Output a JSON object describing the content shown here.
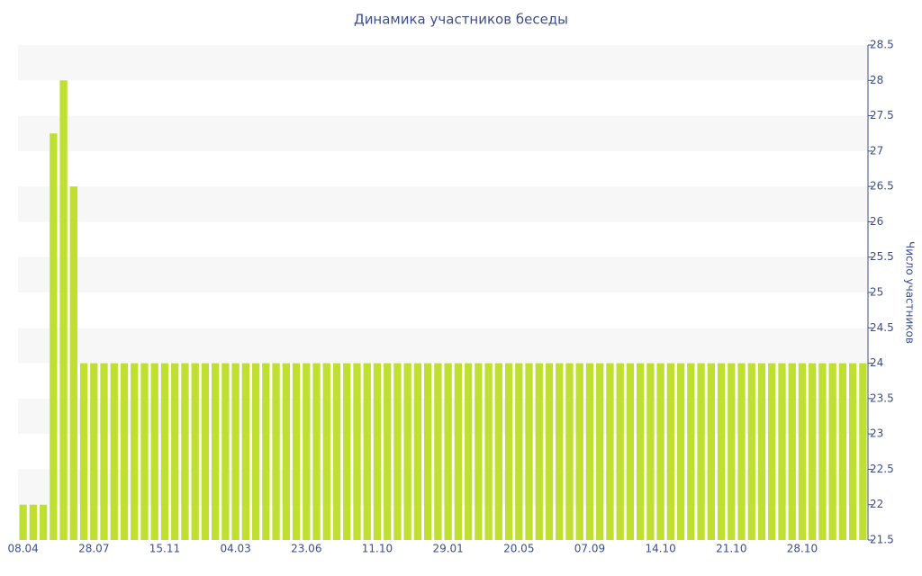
{
  "chart_data": {
    "type": "bar",
    "title": "Динамика участников беседы",
    "y_label": "Число участников",
    "categories": [
      "08.04",
      null,
      null,
      null,
      null,
      null,
      null,
      "28.07",
      null,
      null,
      null,
      null,
      null,
      null,
      "15.11",
      null,
      null,
      null,
      null,
      null,
      null,
      "04.03",
      null,
      null,
      null,
      null,
      null,
      null,
      "23.06",
      null,
      null,
      null,
      null,
      null,
      null,
      "11.10",
      null,
      null,
      null,
      null,
      null,
      null,
      "29.01",
      null,
      null,
      null,
      null,
      null,
      null,
      "20.05",
      null,
      null,
      null,
      null,
      null,
      null,
      "07.09",
      null,
      null,
      null,
      null,
      null,
      null,
      "14.10",
      null,
      null,
      null,
      null,
      null,
      null,
      "21.10",
      null,
      null,
      null,
      null,
      null,
      null,
      "28.10",
      null,
      null,
      null,
      null,
      null,
      null
    ],
    "values": [
      22,
      22,
      22,
      27.25,
      28,
      26.5,
      24,
      24,
      24,
      24,
      24,
      24,
      24,
      24,
      24,
      24,
      24,
      24,
      24,
      24,
      24,
      24,
      24,
      24,
      24,
      24,
      24,
      24,
      24,
      24,
      24,
      24,
      24,
      24,
      24,
      24,
      24,
      24,
      24,
      24,
      24,
      24,
      24,
      24,
      24,
      24,
      24,
      24,
      24,
      24,
      24,
      24,
      24,
      24,
      24,
      24,
      24,
      24,
      24,
      24,
      24,
      24,
      24,
      24,
      24,
      24,
      24,
      24,
      24,
      24,
      24,
      24,
      24,
      24,
      24,
      24,
      24,
      24,
      24,
      24,
      24,
      24,
      24,
      24
    ],
    "color": "#bfe031",
    "ylim": [
      21.5,
      28.5
    ],
    "yticks": [
      21.5,
      22,
      22.5,
      23,
      23.5,
      24,
      24.5,
      25,
      25.5,
      26,
      26.5,
      27,
      27.5,
      28,
      28.5
    ],
    "grid": true,
    "y_axis_side": "right"
  }
}
